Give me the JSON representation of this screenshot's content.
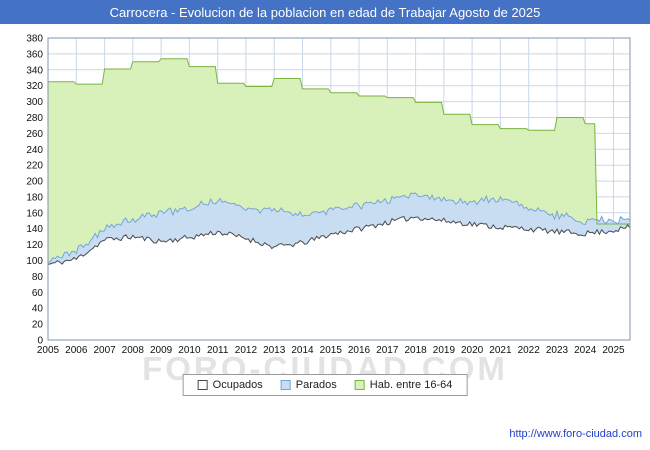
{
  "header": {
    "title": "Carrocera - Evolucion de la poblacion en edad de Trabajar Agosto de 2025"
  },
  "watermark": "FORO-CIUDAD.COM",
  "footer": {
    "url": "http://www.foro-ciudad.com"
  },
  "colors": {
    "titlebar_bg": "#4472C4",
    "title_text": "#FFFFFF",
    "link": "#2140C8",
    "grid": "#C9D8EA",
    "plot_border": "#8096AD",
    "axis_text": "#111111"
  },
  "legend": {
    "position": "bottom",
    "items": [
      {
        "label": "Ocupados",
        "color": "#FFFFFF",
        "border": "#4A4A4A"
      },
      {
        "label": "Parados",
        "color": "#C9DDF2",
        "border": "#76A5D8"
      },
      {
        "label": "Hab. entre 16-64",
        "color": "#D8F0B9",
        "border": "#7CB342"
      }
    ]
  },
  "chart_data": {
    "type": "area",
    "title": "Carrocera - Evolucion de la poblacion en edad de Trabajar Agosto de 2025",
    "xlabel": "",
    "ylabel": "",
    "x_start": 2005,
    "x_end": 2025.583,
    "ylim": [
      0,
      380
    ],
    "y_tick_step": 20,
    "grid": true,
    "x_ticks": [
      2005,
      2006,
      2007,
      2008,
      2009,
      2010,
      2011,
      2012,
      2013,
      2014,
      2015,
      2016,
      2017,
      2018,
      2019,
      2020,
      2021,
      2022,
      2023,
      2024,
      2025
    ],
    "series": [
      {
        "name": "Hab. entre 16-64",
        "key": "hab-16-64",
        "mode": "step-yearly",
        "start_year": 2005,
        "values": [
          325,
          322,
          341,
          350,
          354,
          344,
          323,
          319,
          329,
          316,
          311,
          307,
          305,
          299,
          284,
          271,
          266,
          264,
          280,
          272,
          146
        ],
        "drop_at": 2024.37,
        "drop_value": 146,
        "fill": "#D8F0B9",
        "stroke": "#7CB342"
      },
      {
        "name": "Parados",
        "key": "parados",
        "mode": "linear",
        "stack_on": "Ocupados",
        "seed": 23,
        "noise": 3,
        "anchors_x": [
          2005,
          2006,
          2007,
          2008,
          2009,
          2010,
          2011,
          2012,
          2013,
          2014,
          2015,
          2016,
          2017,
          2018,
          2019,
          2020,
          2021,
          2022,
          2023,
          2024,
          2025,
          2025.583
        ],
        "anchors_y": [
          5,
          10,
          14,
          20,
          37,
          37,
          40,
          38,
          46,
          34,
          32,
          30,
          28,
          29,
          26,
          28,
          37,
          26,
          20,
          17,
          12,
          10
        ],
        "fill": "#C9DDF2",
        "stroke": "#76A5D8"
      },
      {
        "name": "Ocupados",
        "key": "ocupados",
        "mode": "linear",
        "seed": 11,
        "noise": 3.5,
        "anchors_x": [
          2005,
          2006,
          2007,
          2008,
          2009,
          2010,
          2011,
          2012,
          2013,
          2014,
          2015,
          2016,
          2017,
          2018,
          2019,
          2020,
          2021,
          2022,
          2023,
          2024,
          2025,
          2025.583
        ],
        "anchors_y": [
          95,
          102,
          126,
          130,
          124,
          129,
          136,
          128,
          117,
          122,
          133,
          140,
          148,
          155,
          150,
          146,
          142,
          140,
          136,
          134,
          138,
          142
        ],
        "fill": "#FFFFFF",
        "stroke": "#4A4A4A"
      }
    ]
  }
}
